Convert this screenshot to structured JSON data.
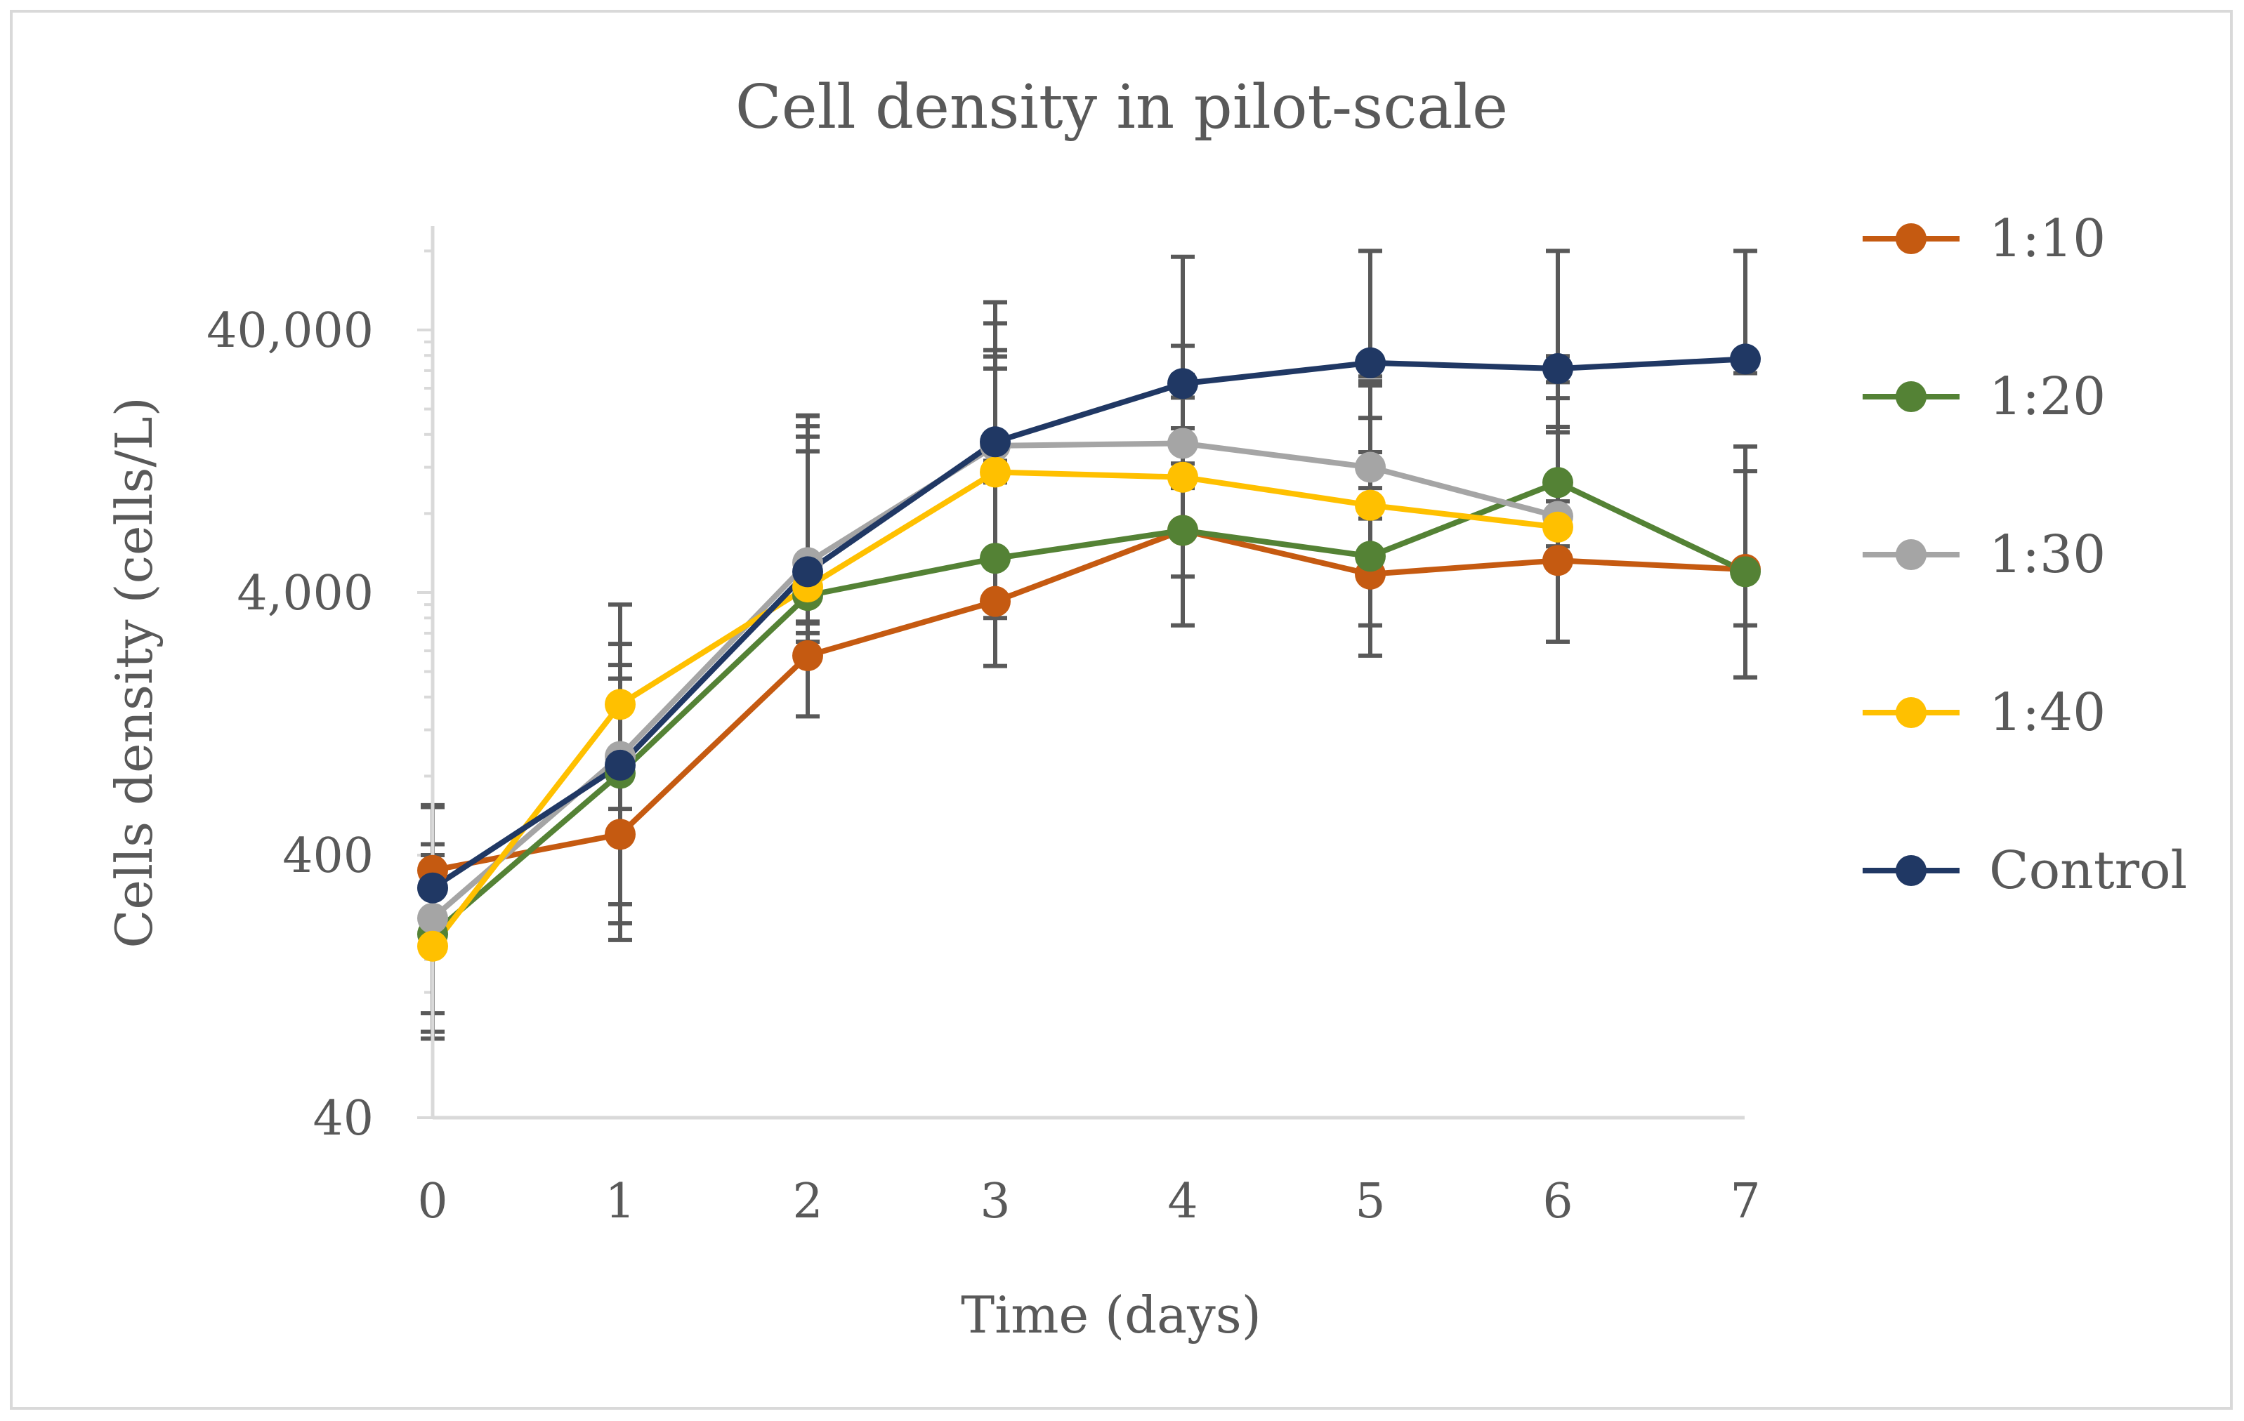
{
  "chart_data": {
    "type": "line",
    "title": "Cell density in pilot-scale",
    "xlabel": "Time (days)",
    "ylabel": "Cells density (cells/L)",
    "yscale": "log",
    "ylim": [
      40,
      80000
    ],
    "y_tick_values": [
      40,
      400,
      4000,
      40000
    ],
    "y_tick_labels": [
      "40",
      "400",
      "4,000",
      "40,000"
    ],
    "x": [
      0,
      1,
      2,
      3,
      4,
      5,
      6,
      7
    ],
    "x_tick_labels": [
      "0",
      "1",
      "2",
      "3",
      "4",
      "5",
      "6",
      "7"
    ],
    "xlim": [
      0,
      7
    ],
    "legend_position": "right",
    "series": [
      {
        "name": "1:10",
        "color": "#c55a11",
        "values": [
          350,
          480,
          2300,
          3700,
          6900,
          4700,
          5300,
          4900
        ],
        "err_low": [
          140,
          220,
          950,
          1600,
          3900,
          2400,
          2700,
          3000
        ],
        "err_high": [
          260,
          1400,
          11500,
          28000,
          10000,
          9000,
          11000,
          9500
        ]
      },
      {
        "name": "1:20",
        "color": "#548235",
        "values": [
          200,
          820,
          3900,
          5400,
          6900,
          5500,
          10500,
          4800
        ],
        "err_low": [
          115,
          600,
          1300,
          2200,
          2300,
          2500,
          1600,
          1800
        ],
        "err_high": [
          200,
          1300,
          15000,
          37000,
          20000,
          13000,
          11500,
          6800
        ]
      },
      {
        "name": "1:30",
        "color": "#a5a5a5",
        "values": [
          230,
          950,
          5200,
          14500,
          14800,
          12000,
          7800,
          null
        ],
        "err_low": [
          150,
          760,
          2100,
          2400,
          2400,
          2000,
          2100,
          null
        ],
        "err_high": [
          210,
          1600,
          10500,
          19000,
          20000,
          13500,
          24000,
          null
        ]
      },
      {
        "name": "1:40",
        "color": "#ffc000",
        "values": [
          180,
          1500,
          4200,
          11500,
          11000,
          8600,
          7100,
          null
        ],
        "err_low": [
          80,
          900,
          1150,
          1000,
          1000,
          950,
          1100,
          null
        ],
        "err_high": [
          130,
          2100,
          13000,
          17000,
          16000,
          16000,
          10000,
          null
        ]
      },
      {
        "name": "Control",
        "color": "#203864",
        "values": [
          300,
          880,
          4800,
          15000,
          25000,
          30000,
          28500,
          31000
        ],
        "err_low": [
          120,
          380,
          2000,
          2300,
          2900,
          3400,
          3200,
          3600
        ],
        "err_high": [
          320,
          1000,
          14000,
          36000,
          51000,
          60000,
          53000,
          77000
        ]
      }
    ]
  }
}
